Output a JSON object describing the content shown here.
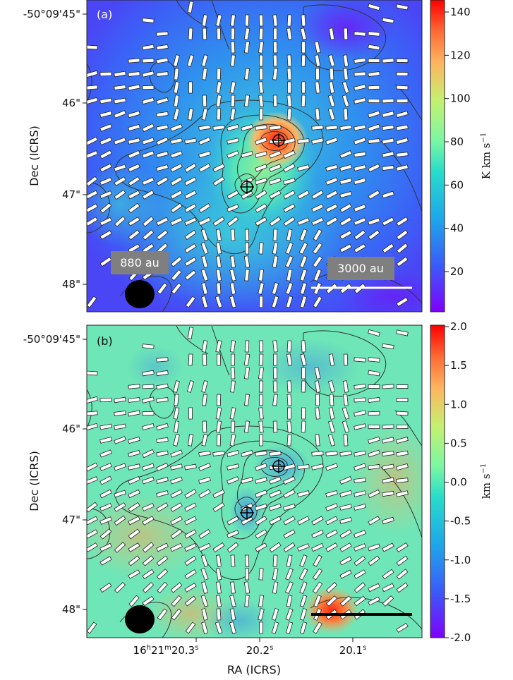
{
  "chart_data": [
    {
      "type": "heatmap",
      "panel_label": "(a)",
      "colormap": "rainbow",
      "colorbar": {
        "range": [
          2,
          145
        ],
        "ticks": [
          "140",
          "120",
          "100",
          "80",
          "60",
          "40",
          "20"
        ],
        "unit_main": "K km s",
        "unit_sup": "−1"
      },
      "y_ticks": [
        "-50°09'45\"",
        "46\"",
        "47\"",
        "48\""
      ],
      "ylabel": "Dec (ICRS)",
      "beam_label": "880 au",
      "scale_label": "3000 au",
      "sources": [
        "source-1",
        "source-2"
      ]
    },
    {
      "type": "heatmap",
      "panel_label": "(b)",
      "colormap": "rainbow",
      "colorbar": {
        "range": [
          -2.0,
          2.0
        ],
        "ticks": [
          "2.0",
          "1.5",
          "1.0",
          "0.5",
          "0.0",
          "-0.5",
          "-1.0",
          "-1.5",
          "-2.0"
        ],
        "unit_main": "km s",
        "unit_sup": "−1"
      },
      "y_ticks": [
        "-50°09'45\"",
        "46\"",
        "47\"",
        "48\""
      ],
      "ylabel": "Dec (ICRS)",
      "x_ticks": [
        {
          "h": "16",
          "m": "21",
          "s": "20.3"
        },
        {
          "h": "",
          "m": "",
          "s": "20.2"
        },
        {
          "h": "",
          "m": "",
          "s": "20.1"
        }
      ],
      "xlabel": "RA (ICRS)"
    }
  ]
}
